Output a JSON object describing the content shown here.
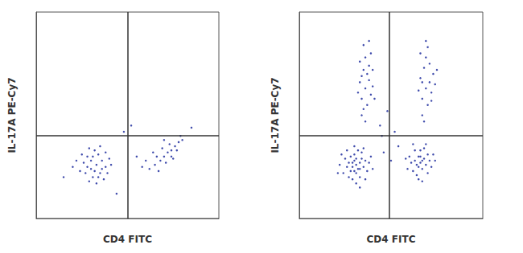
{
  "chart_data": [
    {
      "type": "scatter",
      "x_label": "CD4 FITC",
      "y_label": "IL-17A PE-Cy7",
      "xlim": [
        0,
        100
      ],
      "ylim": [
        0,
        100
      ],
      "tick_labels": false,
      "grid": false,
      "color": "#1f2d9e",
      "marker": "dot",
      "gates": {
        "x": 50,
        "y": 40
      },
      "points": [
        [
          33,
          26
        ],
        [
          30,
          24
        ],
        [
          36,
          28
        ],
        [
          28,
          30
        ],
        [
          35,
          22
        ],
        [
          31,
          20
        ],
        [
          38,
          25
        ],
        [
          26,
          27
        ],
        [
          34,
          31
        ],
        [
          29,
          18
        ],
        [
          37,
          19
        ],
        [
          24,
          23
        ],
        [
          40,
          29
        ],
        [
          32,
          33
        ],
        [
          27,
          22
        ],
        [
          35,
          35
        ],
        [
          22,
          28
        ],
        [
          39,
          22
        ],
        [
          30,
          28
        ],
        [
          33,
          17
        ],
        [
          25,
          31
        ],
        [
          36,
          24
        ],
        [
          31,
          30
        ],
        [
          28,
          25
        ],
        [
          41,
          26
        ],
        [
          34,
          20
        ],
        [
          20,
          25
        ],
        [
          38,
          32
        ],
        [
          29,
          34
        ],
        [
          32,
          23
        ],
        [
          72,
          32
        ],
        [
          68,
          28
        ],
        [
          76,
          35
        ],
        [
          65,
          26
        ],
        [
          70,
          30
        ],
        [
          74,
          33
        ],
        [
          78,
          37
        ],
        [
          62,
          24
        ],
        [
          69,
          34
        ],
        [
          75,
          29
        ],
        [
          80,
          38
        ],
        [
          66,
          30
        ],
        [
          71,
          27
        ],
        [
          73,
          36
        ],
        [
          60,
          28
        ],
        [
          77,
          33
        ],
        [
          67,
          23
        ],
        [
          79,
          40
        ],
        [
          64,
          32
        ],
        [
          70,
          38
        ],
        [
          58,
          25
        ],
        [
          74,
          30
        ],
        [
          48,
          42
        ],
        [
          52,
          45
        ],
        [
          15,
          20
        ],
        [
          55,
          30
        ],
        [
          44,
          12
        ],
        [
          85,
          44
        ]
      ]
    },
    {
      "type": "scatter",
      "x_label": "CD4 FITC",
      "y_label": "IL-17A PE-Cy7",
      "xlim": [
        0,
        100
      ],
      "ylim": [
        0,
        100
      ],
      "tick_labels": false,
      "grid": false,
      "color": "#1f2d9e",
      "marker": "dot",
      "gates": {
        "x": 49,
        "y": 40
      },
      "points": [
        [
          31,
          26
        ],
        [
          29,
          25
        ],
        [
          33,
          27
        ],
        [
          30,
          28
        ],
        [
          32,
          24
        ],
        [
          28,
          23
        ],
        [
          34,
          29
        ],
        [
          27,
          27
        ],
        [
          31,
          22
        ],
        [
          35,
          25
        ],
        [
          26,
          25
        ],
        [
          30,
          31
        ],
        [
          33,
          20
        ],
        [
          36,
          28
        ],
        [
          25,
          29
        ],
        [
          32,
          33
        ],
        [
          29,
          19
        ],
        [
          37,
          23
        ],
        [
          24,
          22
        ],
        [
          34,
          32
        ],
        [
          28,
          30
        ],
        [
          31,
          17
        ],
        [
          38,
          27
        ],
        [
          22,
          26
        ],
        [
          35,
          34
        ],
        [
          27,
          20
        ],
        [
          30,
          35
        ],
        [
          39,
          30
        ],
        [
          23,
          31
        ],
        [
          33,
          15
        ],
        [
          40,
          24
        ],
        [
          21,
          22
        ],
        [
          36,
          19
        ],
        [
          26,
          33
        ],
        [
          31,
          29
        ],
        [
          29,
          27
        ],
        [
          33,
          24
        ],
        [
          30,
          23
        ],
        [
          66,
          27
        ],
        [
          64,
          26
        ],
        [
          68,
          29
        ],
        [
          65,
          30
        ],
        [
          67,
          24
        ],
        [
          63,
          28
        ],
        [
          69,
          26
        ],
        [
          62,
          23
        ],
        [
          70,
          31
        ],
        [
          66,
          33
        ],
        [
          61,
          27
        ],
        [
          71,
          28
        ],
        [
          64,
          21
        ],
        [
          68,
          34
        ],
        [
          60,
          30
        ],
        [
          72,
          25
        ],
        [
          65,
          19
        ],
        [
          69,
          36
        ],
        [
          59,
          24
        ],
        [
          73,
          31
        ],
        [
          63,
          33
        ],
        [
          67,
          18
        ],
        [
          74,
          28
        ],
        [
          58,
          29
        ],
        [
          70,
          22
        ],
        [
          62,
          36
        ],
        [
          66,
          30
        ],
        [
          65,
          25
        ],
        [
          67,
          28
        ],
        [
          36,
          63
        ],
        [
          34,
          58
        ],
        [
          38,
          67
        ],
        [
          35,
          72
        ],
        [
          37,
          55
        ],
        [
          33,
          66
        ],
        [
          39,
          60
        ],
        [
          36,
          78
        ],
        [
          34,
          50
        ],
        [
          38,
          74
        ],
        [
          35,
          84
        ],
        [
          40,
          64
        ],
        [
          32,
          61
        ],
        [
          37,
          70
        ],
        [
          36,
          47
        ],
        [
          39,
          80
        ],
        [
          33,
          76
        ],
        [
          41,
          58
        ],
        [
          35,
          53
        ],
        [
          38,
          86
        ],
        [
          34,
          69
        ],
        [
          40,
          72
        ],
        [
          69,
          63
        ],
        [
          67,
          58
        ],
        [
          71,
          66
        ],
        [
          68,
          73
        ],
        [
          70,
          55
        ],
        [
          66,
          68
        ],
        [
          72,
          61
        ],
        [
          69,
          78
        ],
        [
          67,
          50
        ],
        [
          73,
          70
        ],
        [
          70,
          83
        ],
        [
          65,
          62
        ],
        [
          71,
          75
        ],
        [
          68,
          47
        ],
        [
          74,
          65
        ],
        [
          66,
          80
        ],
        [
          72,
          57
        ],
        [
          69,
          86
        ],
        [
          75,
          72
        ],
        [
          67,
          66
        ],
        [
          46,
          32
        ],
        [
          50,
          28
        ],
        [
          45,
          40
        ],
        [
          48,
          52
        ],
        [
          52,
          42
        ],
        [
          44,
          45
        ],
        [
          54,
          35
        ]
      ]
    }
  ]
}
